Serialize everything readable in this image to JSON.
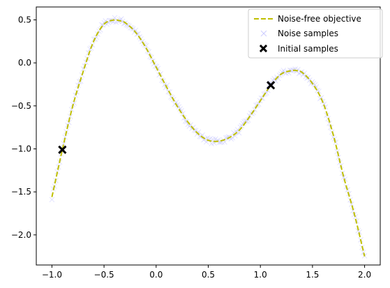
{
  "chart_data": {
    "type": "line",
    "title": "",
    "xlabel": "",
    "ylabel": "",
    "xlim": [
      -1.15,
      2.15
    ],
    "ylim": [
      -2.35,
      0.65
    ],
    "xticks": [
      -1.0,
      -0.5,
      0.0,
      0.5,
      1.0,
      1.5,
      2.0
    ],
    "xtick_labels": [
      "−1.0",
      "−0.5",
      "0.0",
      "0.5",
      "1.0",
      "1.5",
      "2.0"
    ],
    "yticks": [
      0.5,
      0.0,
      -0.5,
      -1.0,
      -1.5,
      -2.0
    ],
    "ytick_labels": [
      "0.5",
      "0.0",
      "−0.5",
      "−1.0",
      "−1.5",
      "−2.0"
    ],
    "grid": false,
    "legend_position": "top-right",
    "series": [
      {
        "name": "Noise-free objective",
        "style": "dashed-line",
        "color": "#bfbf00",
        "x": [
          -1.0,
          -0.9,
          -0.8,
          -0.7,
          -0.6,
          -0.5,
          -0.4,
          -0.35,
          -0.3,
          -0.2,
          -0.1,
          0.0,
          0.1,
          0.2,
          0.3,
          0.4,
          0.5,
          0.6,
          0.7,
          0.8,
          0.9,
          1.0,
          1.1,
          1.2,
          1.3,
          1.35,
          1.4,
          1.5,
          1.6,
          1.7,
          1.8,
          1.9,
          2.0
        ],
        "y": [
          -1.56,
          -1.01,
          -0.5,
          -0.1,
          0.25,
          0.45,
          0.5,
          0.49,
          0.47,
          0.36,
          0.18,
          -0.05,
          -0.28,
          -0.5,
          -0.68,
          -0.82,
          -0.9,
          -0.91,
          -0.87,
          -0.78,
          -0.62,
          -0.44,
          -0.26,
          -0.13,
          -0.09,
          -0.09,
          -0.11,
          -0.24,
          -0.46,
          -0.84,
          -1.33,
          -1.75,
          -2.25
        ]
      },
      {
        "name": "Noise samples",
        "style": "x-markers",
        "color": "#ccccff"
      },
      {
        "name": "Initial samples",
        "style": "bold-x-markers",
        "color": "#000000",
        "x": [
          -0.9,
          1.1
        ],
        "y": [
          -1.01,
          -0.26
        ]
      }
    ]
  }
}
